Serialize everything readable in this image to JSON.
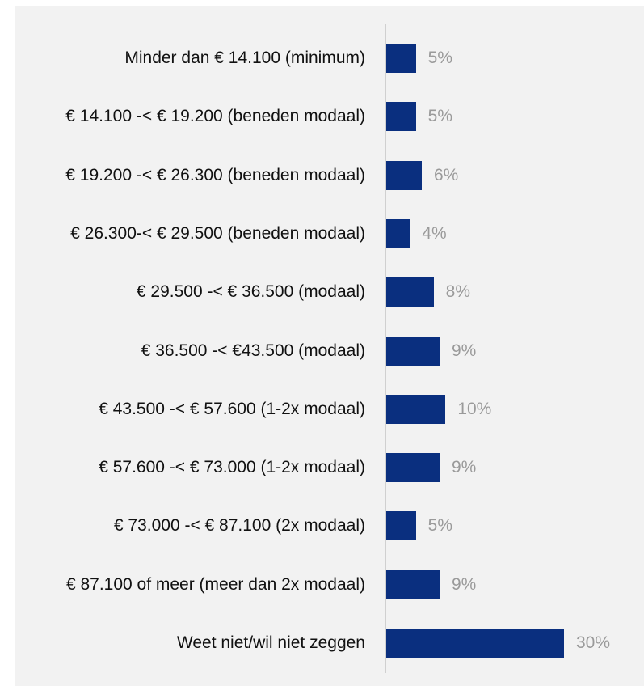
{
  "chart_data": {
    "type": "bar",
    "orientation": "horizontal",
    "categories": [
      "Minder dan € 14.100 (minimum)",
      "€ 14.100 -< € 19.200 (beneden modaal)",
      "€ 19.200 -< € 26.300 (beneden modaal)",
      "€ 26.300-< € 29.500 (beneden modaal)",
      "€ 29.500 -< € 36.500 (modaal)",
      "€ 36.500 -< €43.500 (modaal)",
      "€ 43.500 -< € 57.600 (1-2x modaal)",
      "€ 57.600 -< € 73.000  (1-2x modaal)",
      "€ 73.000 -< € 87.100 (2x modaal)",
      "€ 87.100 of meer (meer dan 2x modaal)",
      "Weet niet/wil niet zeggen"
    ],
    "values": [
      5,
      5,
      6,
      4,
      8,
      9,
      10,
      9,
      5,
      9,
      30
    ],
    "value_labels": [
      "5%",
      "5%",
      "6%",
      "4%",
      "8%",
      "9%",
      "10%",
      "9%",
      "5%",
      "9%",
      "30%"
    ],
    "color": "#0a2f7f",
    "xlim": [
      0,
      30
    ]
  }
}
